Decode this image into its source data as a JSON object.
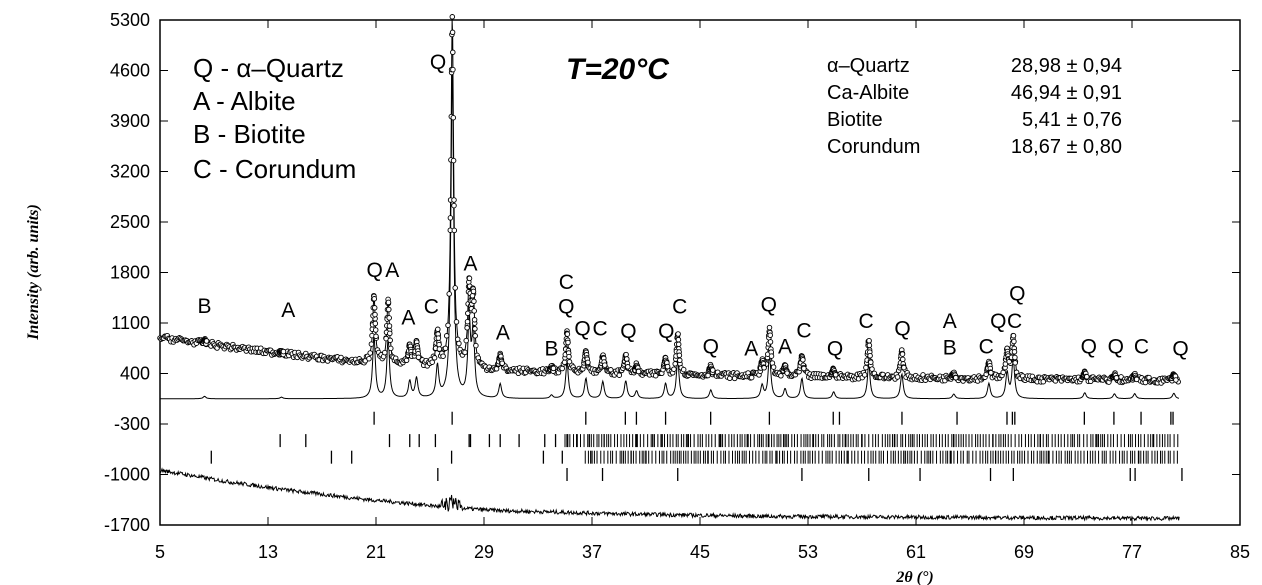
{
  "chart_data": {
    "type": "scatter",
    "title": "T=20°C",
    "xlabel": "2θ (°)",
    "ylabel": "Intensity (arb. units)",
    "xlim": [
      5,
      85
    ],
    "ylim": [
      -1700,
      5300
    ],
    "x_ticks": [
      "5",
      "13",
      "21",
      "29",
      "37",
      "45",
      "53",
      "61",
      "69",
      "77",
      "85"
    ],
    "y_ticks": [
      "5300",
      "4600",
      "3900",
      "3200",
      "2500",
      "1800",
      "1100",
      "400",
      "-300",
      "-1000",
      "-1700"
    ],
    "legend": [
      {
        "label": "Q - α–Quartz"
      },
      {
        "label": "A - Albite"
      },
      {
        "label": "B - Biotite"
      },
      {
        "label": "C - Corundum"
      }
    ],
    "composition": [
      {
        "phase": "α–Quartz",
        "value": "28,98 ± 0,94"
      },
      {
        "phase": "Ca-Albite",
        "value": "46,94 ± 0,91"
      },
      {
        "phase": "Biotite",
        "value": "5,41 ± 0,76"
      },
      {
        "phase": "Corundum",
        "value": "18,67 ± 0,80"
      }
    ],
    "background": {
      "x": [
        5,
        12,
        20,
        30,
        40,
        50,
        60,
        70,
        80.5
      ],
      "y": [
        900,
        720,
        550,
        440,
        390,
        360,
        340,
        320,
        300
      ]
    },
    "peaks": [
      {
        "x": 8.3,
        "y": 850,
        "label": "B"
      },
      {
        "x": 14.0,
        "y": 700,
        "label": "A"
      },
      {
        "x": 20.85,
        "y": 1450,
        "label": "Q"
      },
      {
        "x": 21.9,
        "y": 1400,
        "label": "A"
      },
      {
        "x": 23.5,
        "y": 760,
        "label": "A"
      },
      {
        "x": 24.0,
        "y": 800
      },
      {
        "x": 25.55,
        "y": 950,
        "label": "C"
      },
      {
        "x": 26.65,
        "y": 5300,
        "label": "Q"
      },
      {
        "x": 27.9,
        "y": 1550,
        "label": "A"
      },
      {
        "x": 28.2,
        "y": 1400
      },
      {
        "x": 30.2,
        "y": 650,
        "label": "A"
      },
      {
        "x": 34.0,
        "y": 470,
        "label": "B"
      },
      {
        "x": 35.15,
        "y": 950,
        "label": "C"
      },
      {
        "x": 36.55,
        "y": 700,
        "label": "Q"
      },
      {
        "x": 37.8,
        "y": 650,
        "label": "C"
      },
      {
        "x": 39.5,
        "y": 650,
        "label": "Q"
      },
      {
        "x": 40.3,
        "y": 500
      },
      {
        "x": 42.45,
        "y": 600,
        "label": "Q"
      },
      {
        "x": 43.35,
        "y": 950,
        "label": "C"
      },
      {
        "x": 45.8,
        "y": 500,
        "label": "Q"
      },
      {
        "x": 50.15,
        "y": 1000,
        "label": "Q"
      },
      {
        "x": 49.6,
        "y": 550,
        "label": "A"
      },
      {
        "x": 51.3,
        "y": 500,
        "label": "A"
      },
      {
        "x": 52.55,
        "y": 650,
        "label": "C"
      },
      {
        "x": 54.9,
        "y": 450,
        "label": "Q"
      },
      {
        "x": 57.5,
        "y": 850,
        "label": "C"
      },
      {
        "x": 59.95,
        "y": 700,
        "label": "Q"
      },
      {
        "x": 63.8,
        "y": 400,
        "label": "A"
      },
      {
        "x": 66.4,
        "y": 550,
        "label": "C"
      },
      {
        "x": 67.75,
        "y": 700,
        "label": "Q"
      },
      {
        "x": 68.2,
        "y": 900,
        "label": "C"
      },
      {
        "x": 73.5,
        "y": 400,
        "label": "Q"
      },
      {
        "x": 75.7,
        "y": 380,
        "label": "Q"
      },
      {
        "x": 77.2,
        "y": 380,
        "label": "C"
      },
      {
        "x": 80.1,
        "y": 380,
        "label": "Q"
      }
    ],
    "peak_labels": [
      {
        "x": 8.3,
        "y": 1240,
        "text": "B"
      },
      {
        "x": 14.5,
        "y": 1180,
        "text": "A"
      },
      {
        "x": 20.9,
        "y": 1740,
        "text": "Q"
      },
      {
        "x": 22.2,
        "y": 1740,
        "text": "A"
      },
      {
        "x": 23.4,
        "y": 1080,
        "text": "A"
      },
      {
        "x": 25.1,
        "y": 1230,
        "text": "C"
      },
      {
        "x": 25.6,
        "y": 4620,
        "text": "Q"
      },
      {
        "x": 28.0,
        "y": 1830,
        "text": "A"
      },
      {
        "x": 30.4,
        "y": 870,
        "text": "A"
      },
      {
        "x": 34.0,
        "y": 650,
        "text": "B"
      },
      {
        "x": 35.1,
        "y": 1570,
        "text": "C"
      },
      {
        "x": 35.1,
        "y": 1230,
        "text": "Q"
      },
      {
        "x": 36.3,
        "y": 930,
        "text": "Q"
      },
      {
        "x": 37.6,
        "y": 930,
        "text": "C"
      },
      {
        "x": 39.7,
        "y": 890,
        "text": "Q"
      },
      {
        "x": 42.5,
        "y": 890,
        "text": "Q"
      },
      {
        "x": 43.5,
        "y": 1230,
        "text": "C"
      },
      {
        "x": 45.8,
        "y": 680,
        "text": "Q"
      },
      {
        "x": 48.8,
        "y": 650,
        "text": "A"
      },
      {
        "x": 50.1,
        "y": 1260,
        "text": "Q"
      },
      {
        "x": 51.3,
        "y": 680,
        "text": "A"
      },
      {
        "x": 52.7,
        "y": 900,
        "text": "C"
      },
      {
        "x": 55.0,
        "y": 650,
        "text": "Q"
      },
      {
        "x": 57.3,
        "y": 1030,
        "text": "C"
      },
      {
        "x": 60.0,
        "y": 930,
        "text": "Q"
      },
      {
        "x": 63.5,
        "y": 1030,
        "text": "A"
      },
      {
        "x": 63.5,
        "y": 660,
        "text": "B"
      },
      {
        "x": 66.2,
        "y": 680,
        "text": "C"
      },
      {
        "x": 67.1,
        "y": 1030,
        "text": "Q"
      },
      {
        "x": 68.3,
        "y": 1030,
        "text": "C"
      },
      {
        "x": 68.5,
        "y": 1410,
        "text": "Q"
      },
      {
        "x": 73.8,
        "y": 680,
        "text": "Q"
      },
      {
        "x": 75.8,
        "y": 680,
        "text": "Q"
      },
      {
        "x": 77.7,
        "y": 680,
        "text": "C"
      },
      {
        "x": 80.6,
        "y": 650,
        "text": "Q"
      }
    ],
    "bragg_rows": [
      {
        "phase": "Q",
        "y_center": -220,
        "positions": [
          20.86,
          26.64,
          36.54,
          39.47,
          40.29,
          42.45,
          45.79,
          50.14,
          54.87,
          55.33,
          59.96,
          64.04,
          67.74,
          68.14,
          68.32,
          73.47,
          75.66,
          77.67,
          79.88,
          80.04
        ]
      },
      {
        "phase": "A",
        "y_center": -530,
        "positions": [
          13.9,
          15.8,
          22.0,
          23.5,
          24.2,
          25.4,
          27.9,
          28.0,
          29.4,
          30.2,
          31.6,
          33.5,
          34.3,
          35.2,
          35.9,
          36.8,
          37.9,
          40.3,
          41.5,
          42.2,
          44.1,
          46.5,
          48.5,
          50.1,
          51.3,
          53.4,
          55.8,
          57.0,
          59.4,
          63.8,
          66.7,
          70.2,
          74.4,
          78.6
        ]
      },
      {
        "phase": "B",
        "y_center": -760,
        "positions": [
          8.8,
          17.7,
          19.2,
          26.6,
          33.4,
          34.8,
          37.0,
          39.9,
          41.0,
          45.6,
          50.7,
          55.9,
          60.1,
          63.6,
          66.9,
          70.8,
          77.5
        ]
      },
      {
        "phase": "C",
        "y_center": -1000,
        "positions": [
          25.58,
          35.15,
          37.78,
          43.35,
          52.55,
          57.5,
          61.3,
          66.52,
          68.21,
          76.87,
          77.23,
          80.7
        ]
      }
    ],
    "bragg_dense_bands": [
      {
        "phase": "A",
        "from": 35.0,
        "to": 80.5
      },
      {
        "phase": "B",
        "from": 36.5,
        "to": 80.5
      }
    ],
    "difference": {
      "x": [
        5,
        10,
        15,
        20,
        24,
        26,
        26.7,
        27.5,
        30,
        40,
        50,
        60,
        70,
        80.5
      ],
      "y": [
        -940,
        -1100,
        -1230,
        -1340,
        -1410,
        -1450,
        -1380,
        -1470,
        -1500,
        -1550,
        -1580,
        -1590,
        -1600,
        -1610
      ]
    }
  }
}
